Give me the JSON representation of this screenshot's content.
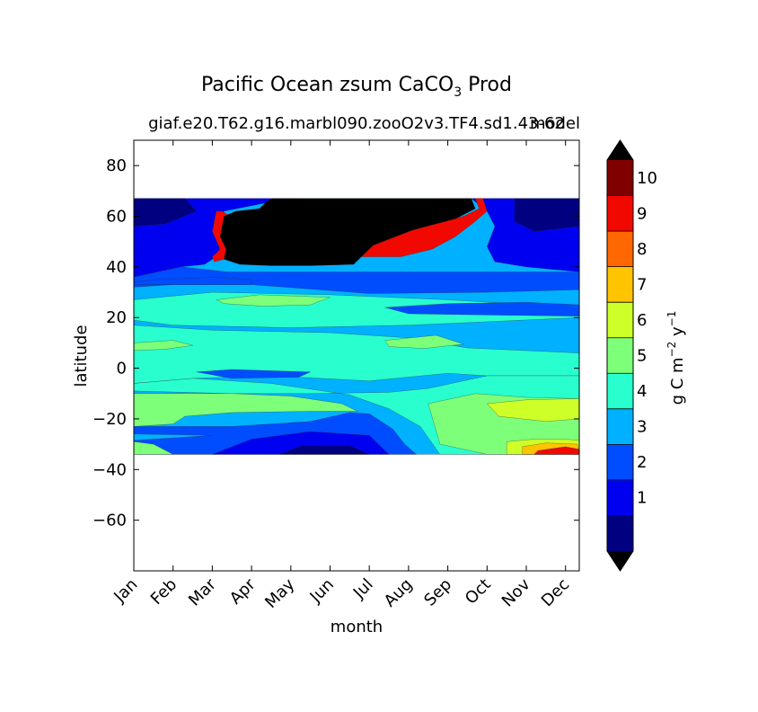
{
  "chart_data": {
    "type": "heatmap",
    "title_main": "Pacific Ocean zsum CaCO",
    "title_sub": "3",
    "title_end": "Prod",
    "case_name": "giaf.e20.T62.g16.marbl090.zooO2v3.TF4.sd1.43-62",
    "overlap_label": "model",
    "xlabel": "month",
    "ylabel": "latitude",
    "x_ticks": [
      "Jan",
      "Feb",
      "Mar",
      "Apr",
      "May",
      "Jun",
      "Jul",
      "Aug",
      "Sep",
      "Oct",
      "Nov",
      "Dec"
    ],
    "y_ticks": [
      80,
      60,
      40,
      20,
      0,
      -20,
      -40,
      -60
    ],
    "y_tick_labels": [
      "80",
      "60",
      "40",
      "20",
      "0",
      "−20",
      "−40",
      "−60"
    ],
    "ylim": [
      -80,
      90
    ],
    "xlim": [
      1,
      12.35
    ],
    "data_lat_range": [
      -34,
      67
    ],
    "colorbar": {
      "label_base": "g C m",
      "label_exp1": "−2",
      "label_mid": "y",
      "label_exp2": "−1",
      "levels": [
        0,
        1,
        2,
        3,
        4,
        5,
        6,
        7,
        8,
        9,
        10,
        11
      ],
      "tick_values": [
        1,
        2,
        3,
        4,
        5,
        6,
        7,
        8,
        9,
        10
      ],
      "tick_labels": [
        "1",
        "2",
        "3",
        "4",
        "5",
        "6",
        "7",
        "8",
        "9",
        "10"
      ],
      "colors": [
        "#000080",
        "#0000f1",
        "#004dff",
        "#00b1ff",
        "#29ffce",
        "#7dff7a",
        "#ceff29",
        "#ffc400",
        "#ff6800",
        "#f10800",
        "#800000"
      ],
      "over_color": "#000000",
      "under_color": "#000000"
    },
    "bands": [
      {
        "level": 3,
        "points": [
          [
            1,
            67
          ],
          [
            12.35,
            67
          ],
          [
            12.35,
            -34
          ],
          [
            1,
            -34
          ]
        ]
      },
      {
        "level": 1,
        "points": [
          [
            1,
            67
          ],
          [
            5.2,
            67
          ],
          [
            4.6,
            66
          ],
          [
            3.3,
            62
          ],
          [
            3.0,
            54
          ],
          [
            3.2,
            47
          ],
          [
            3.1,
            44
          ],
          [
            2.8,
            41
          ],
          [
            2.2,
            40
          ],
          [
            1,
            36
          ]
        ]
      },
      {
        "level": 1,
        "points": [
          [
            8.8,
            67
          ],
          [
            12.35,
            67
          ],
          [
            12.35,
            38
          ],
          [
            11,
            40
          ],
          [
            10.2,
            42
          ],
          [
            10,
            48
          ],
          [
            10.2,
            56
          ],
          [
            10.0,
            62
          ],
          [
            9.6,
            67
          ]
        ]
      },
      {
        "level": 0,
        "points": [
          [
            1,
            67
          ],
          [
            2.3,
            67
          ],
          [
            2.6,
            62
          ],
          [
            1.8,
            57
          ],
          [
            1,
            56
          ]
        ]
      },
      {
        "level": 0,
        "points": [
          [
            10.7,
            67
          ],
          [
            12.35,
            67
          ],
          [
            12.35,
            56
          ],
          [
            11.2,
            54
          ],
          [
            10.7,
            58
          ]
        ]
      },
      {
        "level": 2,
        "points": [
          [
            1,
            36
          ],
          [
            2.2,
            40
          ],
          [
            3.4,
            38
          ],
          [
            6.5,
            38
          ],
          [
            8.3,
            38
          ],
          [
            12.35,
            38
          ],
          [
            12.35,
            31
          ],
          [
            10,
            30
          ],
          [
            7,
            29.5
          ],
          [
            4,
            33
          ],
          [
            2,
            33
          ],
          [
            1,
            32
          ]
        ]
      },
      {
        "level": 4,
        "points": [
          [
            1,
            27
          ],
          [
            3,
            30
          ],
          [
            6,
            29
          ],
          [
            9,
            27
          ],
          [
            12.35,
            24
          ],
          [
            12.35,
            20
          ],
          [
            9.5,
            18
          ],
          [
            8,
            17
          ],
          [
            5,
            16
          ],
          [
            2,
            17
          ],
          [
            1,
            19
          ]
        ]
      },
      {
        "level": 5,
        "points": [
          [
            3.1,
            27
          ],
          [
            4.2,
            29
          ],
          [
            6,
            28
          ],
          [
            5.5,
            25
          ],
          [
            4.3,
            24.5
          ],
          [
            3.3,
            25.5
          ]
        ]
      },
      {
        "level": 2,
        "points": [
          [
            7.4,
            24
          ],
          [
            9,
            25.5
          ],
          [
            11,
            26
          ],
          [
            12.35,
            25
          ],
          [
            12.35,
            20.5
          ],
          [
            10,
            21
          ],
          [
            8,
            21.5
          ]
        ]
      },
      {
        "level": 4,
        "points": [
          [
            1,
            17
          ],
          [
            3,
            15
          ],
          [
            6,
            14
          ],
          [
            8,
            12
          ],
          [
            9.5,
            8
          ],
          [
            12.35,
            6
          ],
          [
            12.35,
            -3
          ],
          [
            10,
            -3
          ],
          [
            9,
            -2
          ],
          [
            7,
            -5
          ],
          [
            4.5,
            -3
          ],
          [
            2.5,
            -4
          ],
          [
            1,
            -6
          ]
        ]
      },
      {
        "level": 5,
        "points": [
          [
            1,
            10
          ],
          [
            2,
            11
          ],
          [
            2.5,
            9
          ],
          [
            1.8,
            7.5
          ],
          [
            1,
            7
          ]
        ]
      },
      {
        "level": 5,
        "points": [
          [
            7.4,
            11
          ],
          [
            8.7,
            13
          ],
          [
            9.4,
            9.5
          ],
          [
            8.4,
            7.8
          ],
          [
            7.5,
            8.5
          ]
        ]
      },
      {
        "level": 2,
        "points": [
          [
            2.6,
            -1.5
          ],
          [
            3.5,
            -0.5
          ],
          [
            5.5,
            -1.5
          ],
          [
            5.2,
            -3.5
          ],
          [
            3.5,
            -4
          ]
        ]
      },
      {
        "level": 4,
        "points": [
          [
            1,
            -6
          ],
          [
            2.5,
            -4
          ],
          [
            4.5,
            -6
          ],
          [
            6.5,
            -10.5
          ],
          [
            7.5,
            -16
          ],
          [
            8.3,
            -23
          ],
          [
            8.8,
            -34
          ],
          [
            12.35,
            -34
          ],
          [
            12.35,
            -3
          ],
          [
            10,
            -3
          ],
          [
            8.5,
            -8
          ],
          [
            7.5,
            -9.5
          ],
          [
            5.5,
            -10
          ],
          [
            3.5,
            -10
          ],
          [
            1,
            -9
          ]
        ]
      },
      {
        "level": 2,
        "points": [
          [
            1,
            -23
          ],
          [
            3.5,
            -23
          ],
          [
            5.5,
            -21
          ],
          [
            6.5,
            -17.5
          ],
          [
            7,
            -18
          ],
          [
            7.6,
            -24
          ],
          [
            7.9,
            -30
          ],
          [
            8.2,
            -34
          ],
          [
            1,
            -34
          ]
        ]
      },
      {
        "level": 1,
        "points": [
          [
            3,
            -34
          ],
          [
            4,
            -28
          ],
          [
            5.5,
            -25
          ],
          [
            7,
            -26.5
          ],
          [
            7.5,
            -34
          ]
        ]
      },
      {
        "level": 0,
        "points": [
          [
            4.7,
            -34
          ],
          [
            5.3,
            -30.5
          ],
          [
            6.5,
            -30.5
          ],
          [
            7,
            -34
          ]
        ]
      },
      {
        "level": 3,
        "points": [
          [
            1,
            -26
          ],
          [
            3,
            -26.5
          ],
          [
            1,
            -28.5
          ]
        ]
      },
      {
        "level": 5,
        "points": [
          [
            1,
            -10
          ],
          [
            3.5,
            -10
          ],
          [
            5,
            -11
          ],
          [
            6.3,
            -14
          ],
          [
            6.7,
            -17
          ],
          [
            5.5,
            -17
          ],
          [
            3.5,
            -17.5
          ],
          [
            2.3,
            -19
          ],
          [
            2,
            -22
          ],
          [
            1,
            -23
          ]
        ]
      },
      {
        "level": 5,
        "points": [
          [
            8.5,
            -14
          ],
          [
            9.7,
            -10
          ],
          [
            11,
            -11.5
          ],
          [
            12.35,
            -12
          ],
          [
            12.35,
            -34
          ],
          [
            10,
            -34
          ],
          [
            8.8,
            -30
          ]
        ]
      },
      {
        "level": 6,
        "points": [
          [
            10,
            -14
          ],
          [
            11,
            -12.5
          ],
          [
            12.35,
            -12
          ],
          [
            12.35,
            -20
          ],
          [
            11.5,
            -21
          ],
          [
            10.3,
            -19
          ]
        ]
      },
      {
        "level": 5,
        "points": [
          [
            1,
            -29
          ],
          [
            1.5,
            -30
          ],
          [
            2,
            -34
          ],
          [
            1,
            -34
          ]
        ]
      },
      {
        "level": 6,
        "points": [
          [
            10.5,
            -29
          ],
          [
            11.2,
            -28
          ],
          [
            12,
            -28
          ],
          [
            12.35,
            -28.5
          ],
          [
            12.35,
            -34
          ],
          [
            10.5,
            -34
          ]
        ]
      },
      {
        "level": 7,
        "points": [
          [
            10.9,
            -31
          ],
          [
            11.5,
            -29.5
          ],
          [
            12.3,
            -30
          ],
          [
            12.35,
            -34
          ],
          [
            10.9,
            -34
          ]
        ]
      },
      {
        "level": 9,
        "points": [
          [
            11.3,
            -32.5
          ],
          [
            12,
            -31
          ],
          [
            12.35,
            -32
          ],
          [
            12.35,
            -34
          ],
          [
            11.2,
            -34
          ]
        ]
      },
      {
        "level": 2,
        "points": [
          [
            1,
            33
          ],
          [
            2,
            33
          ],
          [
            4,
            33
          ],
          [
            4,
            35
          ],
          [
            3,
            36
          ],
          [
            2.5,
            35.5
          ],
          [
            1.5,
            35
          ],
          [
            1,
            34
          ]
        ]
      },
      {
        "level": 9,
        "points": [
          [
            3.25,
            62
          ],
          [
            3.4,
            60.5
          ],
          [
            3.3,
            52
          ],
          [
            3.45,
            47
          ],
          [
            3.3,
            43
          ],
          [
            3.05,
            42
          ],
          [
            3.0,
            44
          ],
          [
            3.2,
            47
          ],
          [
            3.0,
            54
          ],
          [
            3.1,
            62
          ]
        ]
      },
      {
        "level": 9,
        "points": [
          [
            9.7,
            67
          ],
          [
            9.8,
            63
          ],
          [
            9.4,
            60
          ],
          [
            8.2,
            55
          ],
          [
            7.2,
            50
          ],
          [
            6.8,
            44
          ],
          [
            7.8,
            44
          ],
          [
            8.6,
            47
          ],
          [
            9.2,
            52
          ],
          [
            9.7,
            58
          ],
          [
            10.0,
            62
          ],
          [
            9.9,
            67
          ]
        ]
      },
      {
        "level": 11,
        "points": [
          [
            4.55,
            67
          ],
          [
            9.6,
            67
          ],
          [
            9.7,
            63
          ],
          [
            9.2,
            59
          ],
          [
            8.1,
            54.5
          ],
          [
            7.1,
            48.5
          ],
          [
            6.6,
            41
          ],
          [
            5.5,
            40.5
          ],
          [
            4.5,
            40.5
          ],
          [
            3.7,
            41
          ],
          [
            3.3,
            43
          ],
          [
            3.35,
            47
          ],
          [
            3.2,
            52
          ],
          [
            3.3,
            60
          ],
          [
            3.6,
            62
          ],
          [
            4.2,
            63
          ],
          [
            4.4,
            66
          ]
        ]
      }
    ]
  }
}
